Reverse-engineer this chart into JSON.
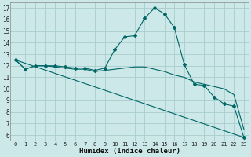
{
  "xlabel": "Humidex (Indice chaleur)",
  "background_color": "#cce8e8",
  "grid_color": "#aacccc",
  "line_color": "#006666",
  "xlim": [
    -0.5,
    23.5
  ],
  "ylim": [
    5.5,
    17.5
  ],
  "xticks": [
    0,
    1,
    2,
    3,
    4,
    5,
    6,
    7,
    8,
    9,
    10,
    11,
    12,
    13,
    14,
    15,
    16,
    17,
    18,
    19,
    20,
    21,
    22,
    23
  ],
  "yticks": [
    6,
    7,
    8,
    9,
    10,
    11,
    12,
    13,
    14,
    15,
    16,
    17
  ],
  "series": [
    {
      "x": [
        0,
        1,
        2,
        3,
        4,
        5,
        6,
        7,
        8,
        9,
        10,
        11,
        12,
        13,
        14,
        15,
        16,
        17,
        18,
        19,
        20,
        21,
        22,
        23
      ],
      "y": [
        12.5,
        11.7,
        12.0,
        12.0,
        12.0,
        11.9,
        11.8,
        11.8,
        11.6,
        11.8,
        13.4,
        14.5,
        14.6,
        16.1,
        17.0,
        16.5,
        15.3,
        12.1,
        10.4,
        10.3,
        9.3,
        8.7,
        8.5,
        5.8
      ],
      "has_markers": true
    },
    {
      "x": [
        0,
        1,
        2,
        3,
        4,
        5,
        6,
        7,
        8,
        9,
        10,
        11,
        12,
        13,
        14,
        15,
        16,
        17,
        18,
        19,
        20,
        21,
        22,
        23
      ],
      "y": [
        12.5,
        11.7,
        12.0,
        12.0,
        11.9,
        11.8,
        11.7,
        11.7,
        11.5,
        11.6,
        11.7,
        11.8,
        11.9,
        11.9,
        11.7,
        11.5,
        11.2,
        11.0,
        10.6,
        10.4,
        10.2,
        10.0,
        9.5,
        6.5
      ],
      "has_markers": false
    },
    {
      "x": [
        0,
        23
      ],
      "y": [
        12.5,
        5.8
      ],
      "has_markers": false
    }
  ]
}
